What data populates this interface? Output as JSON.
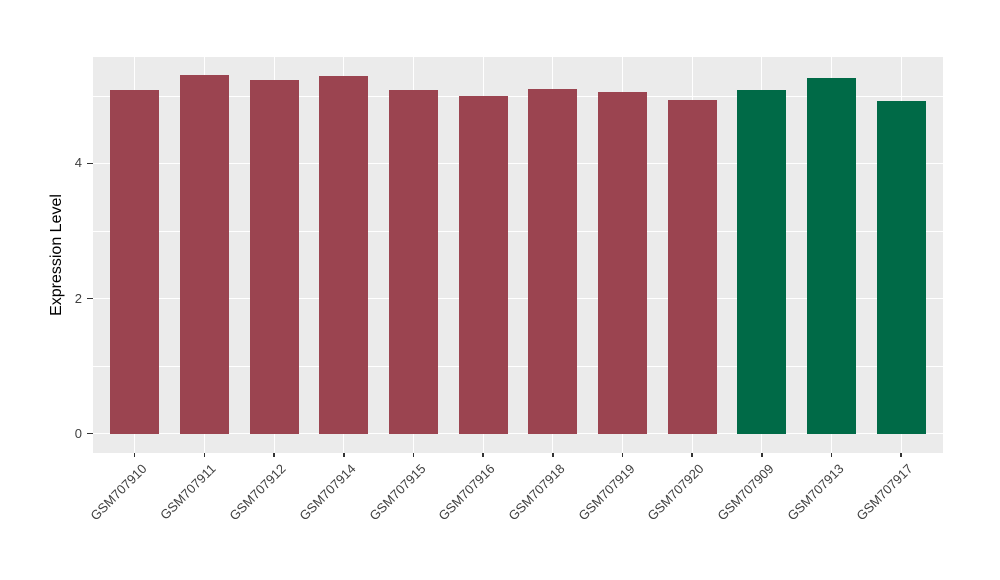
{
  "chart_data": {
    "type": "bar",
    "title": "",
    "xlabel": "",
    "ylabel": "Expression Level",
    "categories": [
      "GSM707910",
      "GSM707911",
      "GSM707912",
      "GSM707914",
      "GSM707915",
      "GSM707916",
      "GSM707918",
      "GSM707919",
      "GSM707920",
      "GSM707909",
      "GSM707913",
      "GSM707917"
    ],
    "values": [
      5.09,
      5.31,
      5.23,
      5.29,
      5.09,
      5.0,
      5.1,
      5.06,
      4.94,
      5.09,
      5.26,
      4.93
    ],
    "bar_colors": [
      "#9B4450",
      "#9B4450",
      "#9B4450",
      "#9B4450",
      "#9B4450",
      "#9B4450",
      "#9B4450",
      "#9B4450",
      "#9B4450",
      "#006A47",
      "#006A47",
      "#006A47"
    ],
    "group_colors": {
      "maroon_group": "#9B4450",
      "green_group": "#006A47"
    },
    "ylim": [
      -0.285,
      5.575
    ],
    "ytick_values": [
      0,
      2,
      4
    ],
    "ytick_labels": [
      "0",
      "2",
      "4"
    ],
    "major_gridlines": [
      0,
      2,
      4
    ],
    "minor_gridlines": [
      1,
      3,
      5
    ],
    "grid": true,
    "legend_position": "none",
    "panel_background": "#EBEBEB",
    "gridline_color": "#FFFFFF",
    "axis_text_color": "#404040",
    "tick_mark_color": "#333333",
    "bar_rotated_label_angle_deg": -45
  }
}
